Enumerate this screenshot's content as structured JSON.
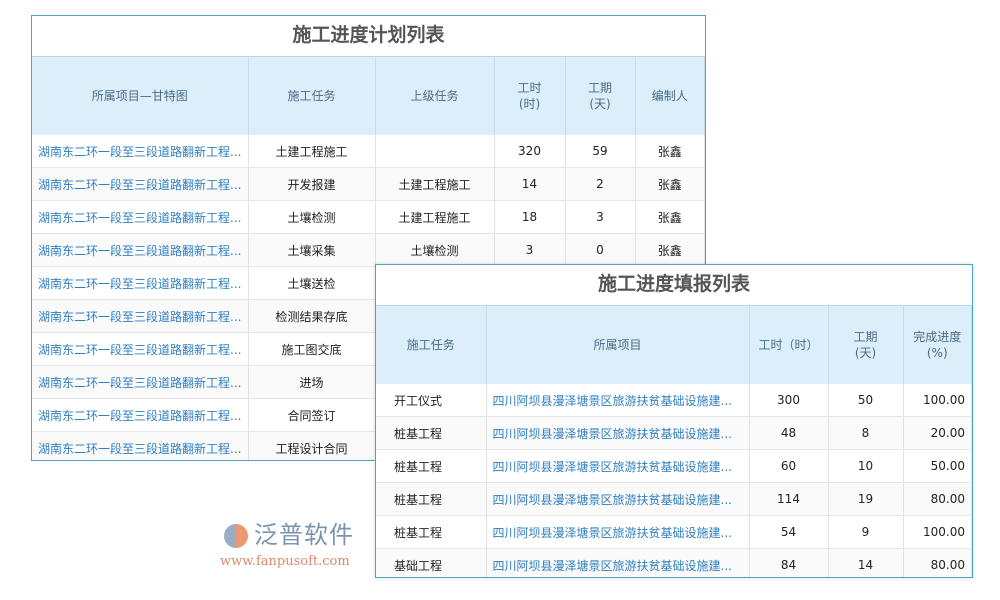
{
  "plan": {
    "title": "施工进度计划列表",
    "headers": [
      "所属项目—甘特图",
      "施工任务",
      "上级任务",
      "工时\n(时)",
      "工期\n(天)",
      "编制人"
    ],
    "rows": [
      [
        "湖南东二环一段至三段道路翻新工程...",
        "土建工程施工",
        "",
        "320",
        "59",
        "张鑫"
      ],
      [
        "湖南东二环一段至三段道路翻新工程...",
        "开发报建",
        "土建工程施工",
        "14",
        "2",
        "张鑫"
      ],
      [
        "湖南东二环一段至三段道路翻新工程...",
        "土壤检测",
        "土建工程施工",
        "18",
        "3",
        "张鑫"
      ],
      [
        "湖南东二环一段至三段道路翻新工程...",
        "土壤采集",
        "土壤检测",
        "3",
        "0",
        "张鑫"
      ],
      [
        "湖南东二环一段至三段道路翻新工程...",
        "土壤送检",
        "",
        "",
        "",
        ""
      ],
      [
        "湖南东二环一段至三段道路翻新工程...",
        "检测结果存底",
        "",
        "",
        "",
        ""
      ],
      [
        "湖南东二环一段至三段道路翻新工程...",
        "施工图交底",
        "",
        "",
        "",
        ""
      ],
      [
        "湖南东二环一段至三段道路翻新工程...",
        "进场",
        "",
        "",
        "",
        ""
      ],
      [
        "湖南东二环一段至三段道路翻新工程...",
        "合同签订",
        "",
        "",
        "",
        ""
      ],
      [
        "湖南东二环一段至三段道路翻新工程...",
        "工程设计合同",
        "",
        "",
        "",
        ""
      ]
    ]
  },
  "report": {
    "title": "施工进度填报列表",
    "headers": [
      "施工任务",
      "所属项目",
      "工时（时）",
      "工期\n(天)",
      "完成进度\n(%)"
    ],
    "rows": [
      [
        "开工仪式",
        "四川阿坝县漫泽塘景区旅游扶贫基础设施建...",
        "300",
        "50",
        "100.00"
      ],
      [
        "桩基工程",
        "四川阿坝县漫泽塘景区旅游扶贫基础设施建...",
        "48",
        "8",
        "20.00"
      ],
      [
        "桩基工程",
        "四川阿坝县漫泽塘景区旅游扶贫基础设施建...",
        "60",
        "10",
        "50.00"
      ],
      [
        "桩基工程",
        "四川阿坝县漫泽塘景区旅游扶贫基础设施建...",
        "114",
        "19",
        "80.00"
      ],
      [
        "桩基工程",
        "四川阿坝县漫泽塘景区旅游扶贫基础设施建...",
        "54",
        "9",
        "100.00"
      ],
      [
        "基础工程",
        "四川阿坝县漫泽塘景区旅游扶贫基础设施建...",
        "84",
        "14",
        "80.00"
      ]
    ]
  },
  "logo": {
    "name": "泛普软件",
    "url": "www.fanpusoft.com"
  },
  "colors": {
    "link": "#2f7fc1",
    "header_bg": "#ddeefb",
    "border": "#4aa6c0"
  }
}
